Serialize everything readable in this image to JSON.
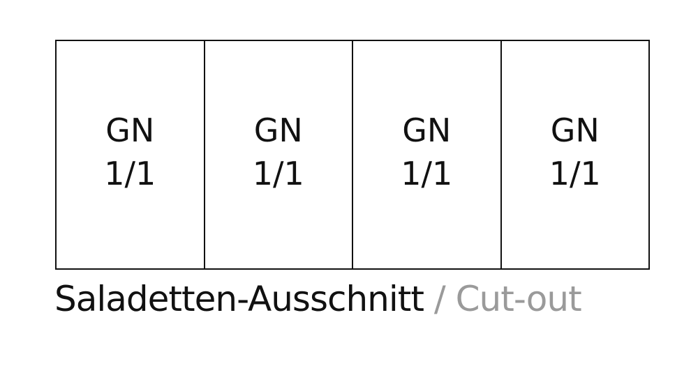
{
  "containers": [
    {
      "line1": "GN",
      "line2": "1/1"
    },
    {
      "line1": "GN",
      "line2": "1/1"
    },
    {
      "line1": "GN",
      "line2": "1/1"
    },
    {
      "line1": "GN",
      "line2": "1/1"
    }
  ],
  "caption": {
    "main": "Saladetten-Ausschnitt",
    "sub": "/ Cut-out"
  },
  "colors": {
    "line": "#111111",
    "caption_main": "#111111",
    "caption_sub": "#9a9a9a"
  }
}
